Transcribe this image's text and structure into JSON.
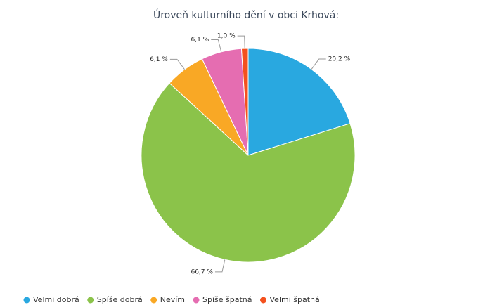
{
  "chart_data": {
    "type": "pie",
    "title": "Úroveň kulturního dění v obci Krhová:",
    "categories": [
      "Velmi dobrá",
      "Spíše dobrá",
      "Nevím",
      "Spíše špatná",
      "Velmi špatná"
    ],
    "values": [
      20.2,
      66.7,
      6.1,
      6.1,
      1.0
    ],
    "value_labels": [
      "20,2 %",
      "66,7 %",
      "6,1 %",
      "6,1 %",
      "1,0 %"
    ],
    "colors": [
      "#29a8e0",
      "#8bc34a",
      "#f9a825",
      "#e56db1",
      "#f4511e"
    ],
    "legend": "bottom-left"
  }
}
